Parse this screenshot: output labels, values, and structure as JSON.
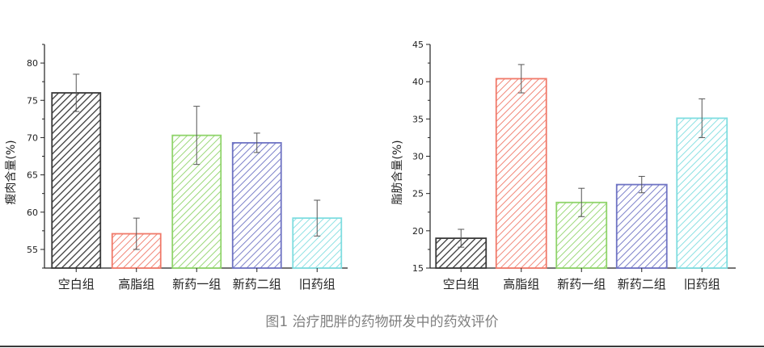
{
  "caption": "图1 治疗肥胖的药物研发中的药效评价",
  "chart_data": [
    {
      "type": "bar",
      "title": "",
      "xlabel": "",
      "ylabel": "瘦肉含量(%)",
      "ylim": [
        52.5,
        82.5
      ],
      "yticks": [
        55,
        60,
        65,
        70,
        75,
        80
      ],
      "categories": [
        "空白组",
        "高脂组",
        "新药一组",
        "新药二组",
        "旧药组"
      ],
      "values": [
        76.0,
        57.1,
        70.3,
        69.3,
        59.2
      ],
      "errors": [
        2.5,
        2.1,
        3.9,
        1.3,
        2.4
      ],
      "colors": [
        "#3a3a3a",
        "#f07a6a",
        "#8fd46a",
        "#6f74c4",
        "#7fdde0"
      ],
      "grid": false
    },
    {
      "type": "bar",
      "title": "",
      "xlabel": "",
      "ylabel": "脂肪含量(%)",
      "ylim": [
        15,
        45
      ],
      "yticks": [
        15,
        20,
        25,
        30,
        35,
        40,
        45
      ],
      "categories": [
        "空白组",
        "高脂组",
        "新药一组",
        "新药二组",
        "旧药组"
      ],
      "values": [
        19.0,
        40.4,
        23.8,
        26.2,
        35.1
      ],
      "errors": [
        1.2,
        1.9,
        1.9,
        1.1,
        2.6
      ],
      "colors": [
        "#3a3a3a",
        "#f07a6a",
        "#8fd46a",
        "#6f74c4",
        "#7fdde0"
      ],
      "grid": false
    }
  ]
}
